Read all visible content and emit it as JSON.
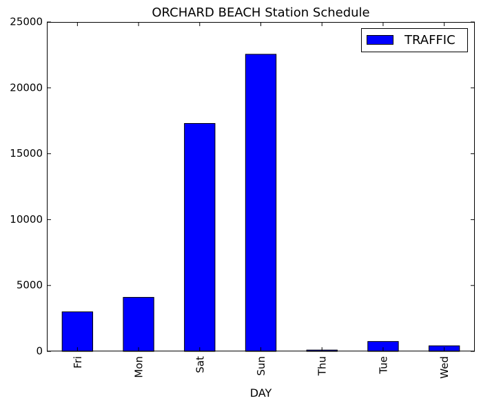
{
  "chart_data": {
    "type": "bar",
    "title": "ORCHARD BEACH Station Schedule",
    "xlabel": "DAY",
    "ylabel": "",
    "categories": [
      "Fri",
      "Mon",
      "Sat",
      "Sun",
      "Thu",
      "Tue",
      "Wed"
    ],
    "series": [
      {
        "name": "TRAFFIC",
        "color": "#0000ff",
        "values": [
          3000,
          4100,
          17300,
          22550,
          100,
          750,
          420
        ]
      }
    ],
    "ylim": [
      0,
      25000
    ],
    "yticks": [
      "0",
      "5000",
      "10000",
      "15000",
      "20000",
      "25000"
    ],
    "legend_position": "top-right",
    "grid": false
  }
}
